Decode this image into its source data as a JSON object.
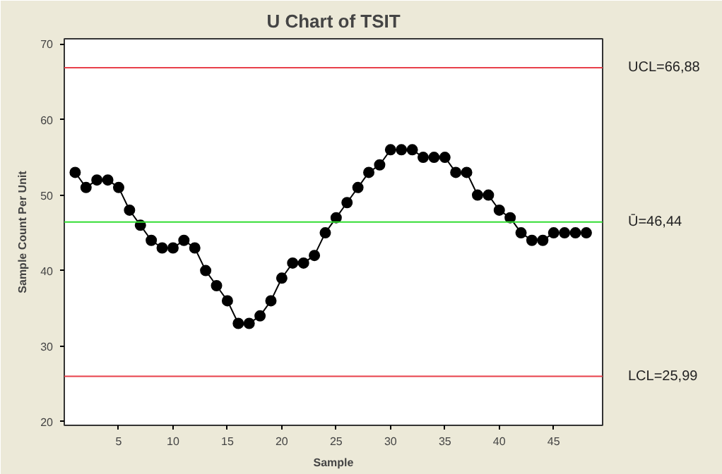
{
  "chart_data": {
    "type": "line",
    "title": "U Chart of TSIT",
    "xlabel": "Sample",
    "ylabel": "Sample Count Per Unit",
    "x": [
      1,
      2,
      3,
      4,
      5,
      6,
      7,
      8,
      9,
      10,
      11,
      12,
      13,
      14,
      15,
      16,
      17,
      18,
      19,
      20,
      21,
      22,
      23,
      24,
      25,
      26,
      27,
      28,
      29,
      30,
      31,
      32,
      33,
      34,
      35,
      36,
      37,
      38,
      39,
      40,
      41,
      42,
      43,
      44,
      45,
      46,
      47,
      48
    ],
    "series": [
      {
        "color": "#000000",
        "values": [
          53,
          51,
          52,
          52,
          51,
          48,
          46,
          44,
          43,
          43,
          44,
          43,
          40,
          38,
          36,
          33,
          33,
          34,
          36,
          39,
          41,
          41,
          42,
          45,
          47,
          49,
          51,
          53,
          54,
          56,
          56,
          56,
          55,
          55,
          55,
          53,
          53,
          50,
          50,
          48,
          47,
          45,
          44,
          44,
          45,
          45,
          45,
          45
        ]
      }
    ],
    "xlim": [
      0,
      49.5
    ],
    "ylim": [
      19.5,
      70.7
    ],
    "xticks": [
      5,
      10,
      15,
      20,
      25,
      30,
      35,
      40,
      45
    ],
    "yticks": [
      20,
      30,
      40,
      50,
      60,
      70
    ],
    "ref_lines": [
      {
        "axis": "y",
        "value": 66.88,
        "label": "UCL=66,88",
        "color": "#e8404a"
      },
      {
        "axis": "y",
        "value": 46.44,
        "label": "Ū=46,44",
        "color": "#33dd33"
      },
      {
        "axis": "y",
        "value": 25.99,
        "label": "LCL=25,99",
        "color": "#e8404a"
      }
    ],
    "marker": "circle",
    "line_style": "solid",
    "grid": false
  }
}
